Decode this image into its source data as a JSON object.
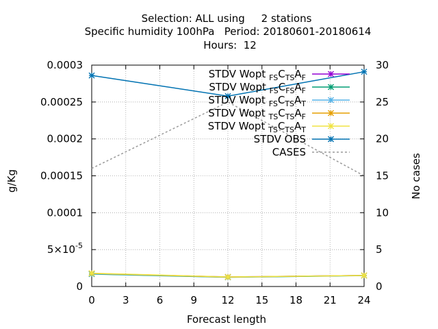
{
  "chart_data": {
    "type": "line",
    "title_lines": [
      "Selection: ALL using     2 stations",
      "Specific humidity 100hPa   Period: 20180601-20180614",
      "Hours:  12"
    ],
    "xlabel": "Forecast length",
    "ylabel": "g/Kg",
    "y2label": "No cases",
    "xlim": [
      0,
      24
    ],
    "ylim": [
      0,
      0.0003
    ],
    "y2lim": [
      0,
      30
    ],
    "x_ticks": [
      0,
      3,
      6,
      9,
      12,
      15,
      18,
      21,
      24
    ],
    "y_ticks": [
      {
        "v": 0,
        "label": "0"
      },
      {
        "v": 5e-05,
        "label": "5×10",
        "exp": "-5"
      },
      {
        "v": 0.0001,
        "label": "0.0001"
      },
      {
        "v": 0.00015,
        "label": "0.00015"
      },
      {
        "v": 0.0002,
        "label": "0.0002"
      },
      {
        "v": 0.00025,
        "label": "0.00025"
      },
      {
        "v": 0.0003,
        "label": "0.0003"
      }
    ],
    "y2_ticks": [
      0,
      5,
      10,
      15,
      20,
      25,
      30
    ],
    "grid": true,
    "legend_position": "top-right",
    "series": [
      {
        "name": "STDV Wopt FS C TS A F",
        "label": {
          "base": "STDV Wopt",
          "parts": [
            [
              "FS",
              "sub"
            ],
            [
              "C",
              ""
            ],
            [
              "TS",
              "sub"
            ],
            [
              "A",
              ""
            ],
            [
              "F",
              "sub"
            ]
          ]
        },
        "color": "#9400d3",
        "axis": "y1",
        "dash": "",
        "marker": true,
        "x": [
          0,
          12,
          24
        ],
        "values": [
          1.75e-05,
          1.3e-05,
          1.5e-05
        ]
      },
      {
        "name": "STDV Wopt FS C FS A F",
        "label": {
          "base": "STDV Wopt",
          "parts": [
            [
              "FS",
              "sub"
            ],
            [
              "C",
              ""
            ],
            [
              "FS",
              "sub"
            ],
            [
              "A",
              ""
            ],
            [
              "F",
              "sub"
            ]
          ]
        },
        "color": "#009e73",
        "axis": "y1",
        "dash": "",
        "marker": true,
        "x": [
          0,
          12,
          24
        ],
        "values": [
          1.68e-05,
          1.25e-05,
          1.48e-05
        ]
      },
      {
        "name": "STDV Wopt FS C TS A T",
        "label": {
          "base": "STDV Wopt",
          "parts": [
            [
              "FS",
              "sub"
            ],
            [
              "C",
              ""
            ],
            [
              "TS",
              "sub"
            ],
            [
              "A",
              ""
            ],
            [
              "T",
              "sub"
            ]
          ]
        },
        "color": "#56b4e9",
        "axis": "y1",
        "dash": "",
        "marker": true,
        "x": [
          0,
          12,
          24
        ],
        "values": [
          1.72e-05,
          1.28e-05,
          1.5e-05
        ]
      },
      {
        "name": "STDV Wopt TS C TS A F",
        "label": {
          "base": "STDV Wopt",
          "parts": [
            [
              "TS",
              "sub"
            ],
            [
              "C",
              ""
            ],
            [
              "TS",
              "sub"
            ],
            [
              "A",
              ""
            ],
            [
              "F",
              "sub"
            ]
          ]
        },
        "color": "#e69f00",
        "axis": "y1",
        "dash": "",
        "marker": true,
        "x": [
          0,
          12,
          24
        ],
        "values": [
          1.78e-05,
          1.28e-05,
          1.5e-05
        ]
      },
      {
        "name": "STDV Wopt TS C TS A T",
        "label": {
          "base": "STDV Wopt",
          "parts": [
            [
              "TS",
              "sub"
            ],
            [
              "C",
              ""
            ],
            [
              "TS",
              "sub"
            ],
            [
              "A",
              ""
            ],
            [
              "T",
              "sub"
            ]
          ]
        },
        "color": "#f0e442",
        "axis": "y1",
        "dash": "",
        "marker": true,
        "x": [
          0,
          12,
          24
        ],
        "values": [
          1.8e-05,
          1.3e-05,
          1.5e-05
        ]
      },
      {
        "name": "STDV OBS",
        "label": {
          "base": "STDV OBS",
          "parts": []
        },
        "color": "#0072b2",
        "axis": "y1",
        "dash": "",
        "marker": true,
        "x": [
          0,
          12,
          24
        ],
        "values": [
          0.000286,
          0.000258,
          0.000291
        ]
      },
      {
        "name": "CASES",
        "label": {
          "base": "CASES",
          "parts": []
        },
        "color": "#999999",
        "axis": "y2",
        "dash": "3,3",
        "marker": false,
        "x": [
          0,
          12,
          24
        ],
        "values": [
          16,
          25,
          15
        ]
      }
    ]
  }
}
